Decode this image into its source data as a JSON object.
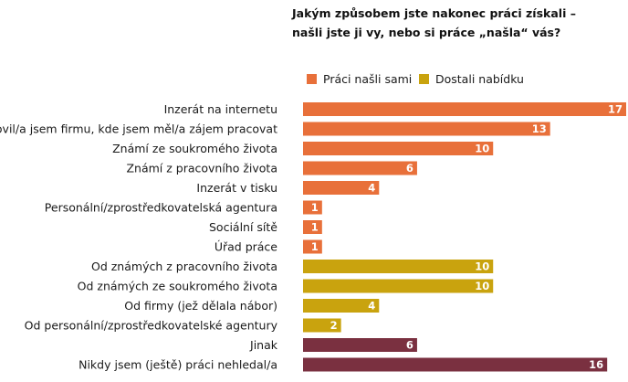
{
  "title_line1": "Jakým způsobem jste nakonec práci získali –",
  "title_line2": "našli jste ji vy, nebo si práce „našla“ vás?",
  "colors": {
    "sami": "#e8703a",
    "nabidka": "#c9a30e",
    "other": "#7a3040"
  },
  "chart_data": {
    "type": "bar",
    "orientation": "horizontal",
    "title": "Jakým způsobem jste nakonec práci získali – našli jste ji vy, nebo si práce „našla“ vás?",
    "legend": [
      {
        "name": "Práci našli sami",
        "color": "#e8703a"
      },
      {
        "name": "Dostali nabídku",
        "color": "#c9a30e"
      }
    ],
    "legend_position": "top",
    "xlim": [
      0,
      17
    ],
    "grid": false,
    "categories": [
      "Inzerát na internetu",
      "Oslovil/a jsem firmu, kde jsem měl/a zájem pracovat",
      "Známí ze soukromého života",
      "Známí z pracovního života",
      "Inzerát v tisku",
      "Personální/zprostředkovatelská agentura",
      "Sociální sítě",
      "Úřad práce",
      "Od známých z pracovního života",
      "Od známých ze soukromého života",
      "Od firmy (jež dělala nábor)",
      "Od personální/zprostředkovatelské agentury",
      "Jinak",
      "Nikdy jsem (ještě) práci nehledal/a"
    ],
    "values": [
      17,
      13,
      10,
      6,
      4,
      1,
      1,
      1,
      10,
      10,
      4,
      2,
      6,
      16
    ],
    "groups": [
      "sami",
      "sami",
      "sami",
      "sami",
      "sami",
      "sami",
      "sami",
      "sami",
      "nabidka",
      "nabidka",
      "nabidka",
      "nabidka",
      "other",
      "other"
    ]
  }
}
